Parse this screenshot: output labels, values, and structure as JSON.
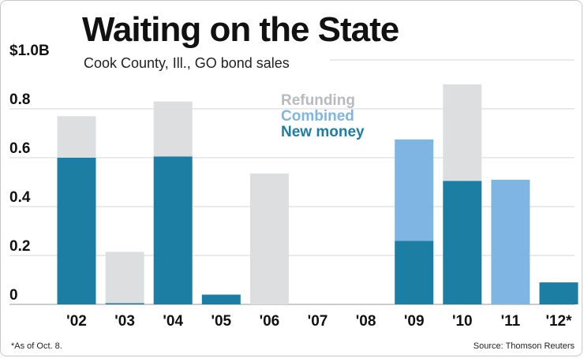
{
  "title": "Waiting on the State",
  "subtitle": "Cook County, Ill., GO bond sales",
  "footnote": "*As of Oct. 8.",
  "source": "Source: Thomson Reuters",
  "colors": {
    "refunding": "#dddee0",
    "combined": "#7fb5e3",
    "new_money": "#1d7ea3",
    "refunding_label": "#b9babd"
  },
  "legend": {
    "refunding": "Refunding",
    "combined": "Combined",
    "new_money": "New money"
  },
  "chart_data": {
    "type": "bar",
    "stacked": true,
    "title": "Waiting on the State",
    "subtitle": "Cook County, Ill., GO bond sales",
    "xlabel": "",
    "ylabel": "",
    "ylim": [
      0,
      1.0
    ],
    "yticks": [
      0,
      0.2,
      0.4,
      0.6,
      0.8,
      1.0
    ],
    "ytick_labels": [
      "0",
      "0.2",
      "0.4",
      "0.6",
      "0.8",
      "$1.0B"
    ],
    "categories": [
      "'02",
      "'03",
      "'04",
      "'05",
      "'06",
      "'07",
      "'08",
      "'09",
      "'10",
      "'11",
      "'12*"
    ],
    "series": [
      {
        "name": "New money",
        "key": "new_money",
        "values": [
          0.6,
          0.005,
          0.605,
          0.04,
          0,
          0,
          0,
          0.26,
          0.505,
          0,
          0.09
        ]
      },
      {
        "name": "Combined",
        "key": "combined",
        "values": [
          0,
          0,
          0,
          0,
          0,
          0,
          0,
          0.415,
          0,
          0.51,
          0
        ]
      },
      {
        "name": "Refunding",
        "key": "refunding",
        "values": [
          0.17,
          0.21,
          0.225,
          0,
          0.535,
          0,
          0,
          0,
          0.395,
          0,
          0
        ]
      }
    ],
    "legend_position": "top-center",
    "grid": true
  }
}
